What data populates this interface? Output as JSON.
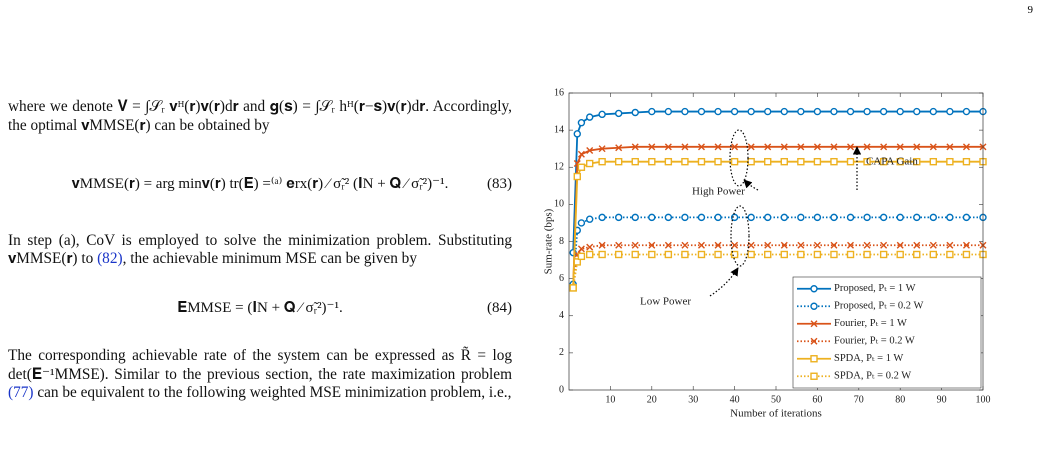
{
  "page_number": "9",
  "para1": "where we denote 𝐕 = ∫𝒮ᵣ 𝐯ᴴ(𝐫)𝐯(𝐫)d𝐫 and 𝐠(𝐬) = ∫𝒮ᵣ hᴴ(𝐫−𝐬)𝐯(𝐫)d𝐫. Accordingly, the optimal 𝐯MMSE(𝐫) can be obtained by",
  "eq83": {
    "body": "𝐯MMSE(𝐫) = arg min𝐯(𝐫) tr(𝐄) =⁽ᵃ⁾ 𝐞rx(𝐫) ⁄ σ̃ᵣ² (𝐈N + 𝐐 ⁄ σ̃ᵣ²)⁻¹.",
    "number": "(83)"
  },
  "para2": {
    "before": "In step (a), CoV is employed to solve the minimization problem. Substituting 𝐯MMSE(𝐫) to ",
    "ref": "(82)",
    "after": ", the achievable minimum MSE can be given by"
  },
  "eq84": {
    "body": "𝐄MMSE = (𝐈N + 𝐐 ⁄ σ̃ᵣ²)⁻¹.",
    "number": "(84)"
  },
  "para3": {
    "before": "The corresponding achievable rate of the system can be expressed as R̃ = log det(𝐄⁻¹MMSE). Similar to the previous section, the rate maximization problem ",
    "ref": "(77)",
    "after": " can be equivalent to the following weighted MSE minimization problem, i.e.,"
  },
  "chart_data": {
    "type": "line",
    "xlabel": "Number of iterations",
    "ylabel": "Sum-rate (bps)",
    "xlim": [
      0,
      100
    ],
    "xticks": [
      10,
      20,
      30,
      40,
      50,
      60,
      70,
      80,
      90,
      100
    ],
    "ylim": [
      0,
      16
    ],
    "yticks": [
      0,
      2,
      4,
      6,
      8,
      10,
      12,
      14,
      16
    ],
    "legend": "lower right",
    "annotations": [
      "CAPA Gain",
      "High Power",
      "Low Power"
    ],
    "x": [
      1,
      2,
      3,
      5,
      8,
      12,
      16,
      20,
      24,
      28,
      32,
      36,
      40,
      44,
      48,
      52,
      56,
      60,
      64,
      68,
      72,
      76,
      80,
      84,
      88,
      92,
      96,
      100
    ],
    "series": [
      {
        "name": "Proposed, Pₜ = 1 W",
        "color": "#0072bd",
        "marker": "o",
        "linestyle": "solid",
        "values": [
          7.4,
          13.8,
          14.4,
          14.7,
          14.85,
          14.9,
          14.95,
          15,
          15,
          15,
          15,
          15,
          15,
          15,
          15,
          15,
          15,
          15,
          15,
          15,
          15,
          15,
          15,
          15,
          15,
          15,
          15,
          15
        ]
      },
      {
        "name": "Proposed, Pₜ = 0.2 W",
        "color": "#0072bd",
        "marker": "o",
        "linestyle": "dotted",
        "values": [
          5.7,
          8.6,
          9.0,
          9.2,
          9.3,
          9.3,
          9.3,
          9.3,
          9.3,
          9.3,
          9.3,
          9.3,
          9.3,
          9.3,
          9.3,
          9.3,
          9.3,
          9.3,
          9.3,
          9.3,
          9.3,
          9.3,
          9.3,
          9.3,
          9.3,
          9.3,
          9.3,
          9.3
        ]
      },
      {
        "name": "Fourier, Pₜ = 1 W",
        "color": "#d95319",
        "marker": "x",
        "linestyle": "solid",
        "values": [
          5.5,
          12.2,
          12.7,
          12.9,
          13.0,
          13.05,
          13.1,
          13.1,
          13.1,
          13.1,
          13.1,
          13.1,
          13.1,
          13.1,
          13.1,
          13.1,
          13.1,
          13.1,
          13.1,
          13.1,
          13.1,
          13.1,
          13.1,
          13.1,
          13.1,
          13.1,
          13.1,
          13.1
        ]
      },
      {
        "name": "Fourier, Pₜ = 0.2 W",
        "color": "#d95319",
        "marker": "x",
        "linestyle": "dotted",
        "values": [
          5.5,
          7.3,
          7.6,
          7.7,
          7.8,
          7.8,
          7.8,
          7.8,
          7.8,
          7.8,
          7.8,
          7.8,
          7.8,
          7.8,
          7.8,
          7.8,
          7.8,
          7.8,
          7.8,
          7.8,
          7.8,
          7.8,
          7.8,
          7.8,
          7.8,
          7.8,
          7.8,
          7.8
        ]
      },
      {
        "name": "SPDA, Pₜ = 1 W",
        "color": "#edb120",
        "marker": "s",
        "linestyle": "solid",
        "values": [
          5.5,
          11.5,
          12.0,
          12.2,
          12.3,
          12.3,
          12.3,
          12.3,
          12.3,
          12.3,
          12.3,
          12.3,
          12.3,
          12.3,
          12.3,
          12.3,
          12.3,
          12.3,
          12.3,
          12.3,
          12.3,
          12.3,
          12.3,
          12.3,
          12.3,
          12.3,
          12.3,
          12.3
        ]
      },
      {
        "name": "SPDA, Pₜ = 0.2 W",
        "color": "#edb120",
        "marker": "s",
        "linestyle": "dotted",
        "values": [
          5.5,
          6.9,
          7.2,
          7.3,
          7.3,
          7.3,
          7.3,
          7.3,
          7.3,
          7.3,
          7.3,
          7.3,
          7.3,
          7.3,
          7.3,
          7.3,
          7.3,
          7.3,
          7.3,
          7.3,
          7.3,
          7.3,
          7.3,
          7.3,
          7.3,
          7.3,
          7.3,
          7.3
        ]
      }
    ]
  }
}
